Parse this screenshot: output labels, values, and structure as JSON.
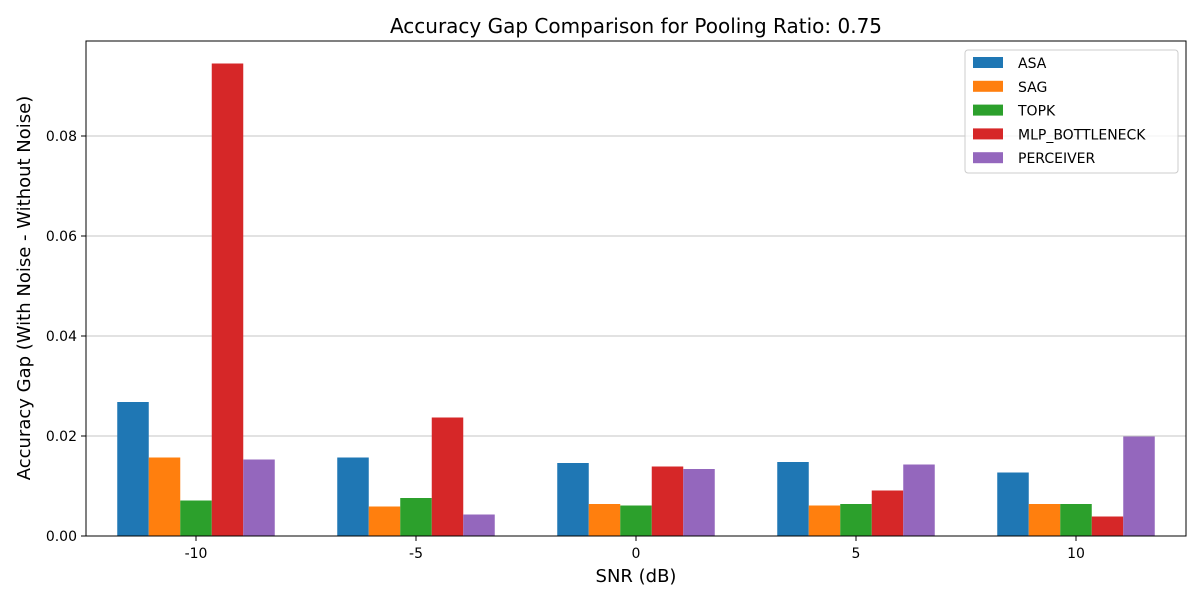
{
  "chart_data": {
    "type": "bar",
    "title": "Accuracy Gap Comparison for Pooling Ratio: 0.75",
    "xlabel": "SNR (dB)",
    "ylabel": "Accuracy Gap (With Noise - Without Noise)",
    "categories": [
      "-10",
      "-5",
      "0",
      "5",
      "10"
    ],
    "ylim": [
      0,
      0.099
    ],
    "yticks": [
      0.0,
      0.02,
      0.04,
      0.06,
      0.08
    ],
    "ytick_labels": [
      "0.00",
      "0.02",
      "0.04",
      "0.06",
      "0.08"
    ],
    "grid": "y-major",
    "legend_position": "top-right",
    "series": [
      {
        "name": "ASA",
        "color": "#1f77b4",
        "values": [
          0.0268,
          0.0157,
          0.0146,
          0.0148,
          0.0127
        ]
      },
      {
        "name": "SAG",
        "color": "#ff7f0e",
        "values": [
          0.0157,
          0.0059,
          0.0064,
          0.0061,
          0.0064
        ]
      },
      {
        "name": "TOPK",
        "color": "#2ca02c",
        "values": [
          0.0071,
          0.0076,
          0.0061,
          0.0064,
          0.0064
        ]
      },
      {
        "name": "MLP_BOTTLENECK",
        "color": "#d62728",
        "values": [
          0.0945,
          0.0237,
          0.0139,
          0.0091,
          0.0039
        ]
      },
      {
        "name": "PERCEIVER",
        "color": "#9467bd",
        "values": [
          0.0153,
          0.0043,
          0.0134,
          0.0143,
          0.0199
        ]
      }
    ]
  }
}
